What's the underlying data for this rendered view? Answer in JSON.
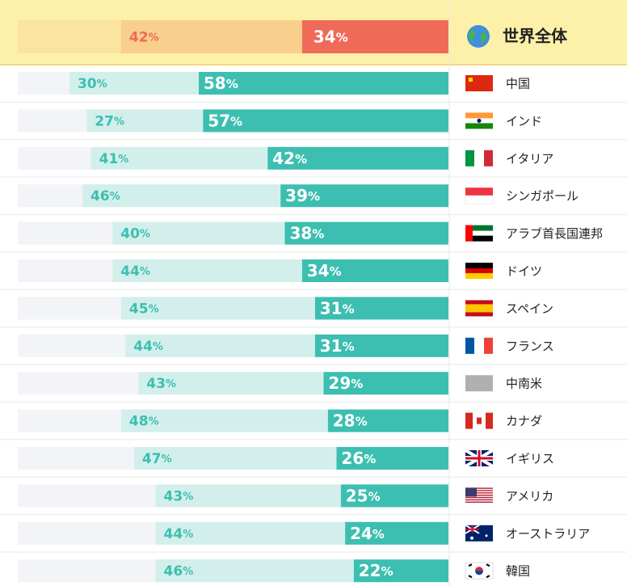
{
  "chart_data": {
    "type": "bar",
    "stacked": true,
    "orientation": "horizontal",
    "xlim": [
      0,
      100
    ],
    "total": {
      "name": "世界全体",
      "values": [
        34,
        42
      ],
      "value_labels": [
        "34%",
        "42%"
      ],
      "colors": [
        "#f06a58",
        "#f8cf8c"
      ],
      "label_colors": [
        "#ffffff",
        "#f06a58"
      ]
    },
    "categories": [
      "中国",
      "インド",
      "イタリア",
      "シンガポール",
      "アラブ首長国連邦",
      "ドイツ",
      "スペイン",
      "フランス",
      "中南米",
      "カナダ",
      "イギリス",
      "アメリカ",
      "オーストラリア",
      "韓国"
    ],
    "series": [
      {
        "color": "#3cbfb1",
        "label_color": "#ffffff",
        "values": [
          58,
          57,
          42,
          39,
          38,
          34,
          31,
          31,
          29,
          28,
          26,
          25,
          24,
          22
        ],
        "value_labels": [
          "58%",
          "57%",
          "42%",
          "39%",
          "38%",
          "34%",
          "31%",
          "31%",
          "29%",
          "28%",
          "26%",
          "25%",
          "24%",
          "22%"
        ]
      },
      {
        "color": "#d3efec",
        "label_color": "#3cbfb1",
        "values": [
          30,
          27,
          41,
          46,
          40,
          44,
          45,
          44,
          43,
          48,
          47,
          43,
          44,
          46
        ],
        "value_labels": [
          "30%",
          "27%",
          "41%",
          "46%",
          "40%",
          "44%",
          "45%",
          "44%",
          "43%",
          "48%",
          "47%",
          "43%",
          "44%",
          "46%"
        ]
      }
    ]
  }
}
